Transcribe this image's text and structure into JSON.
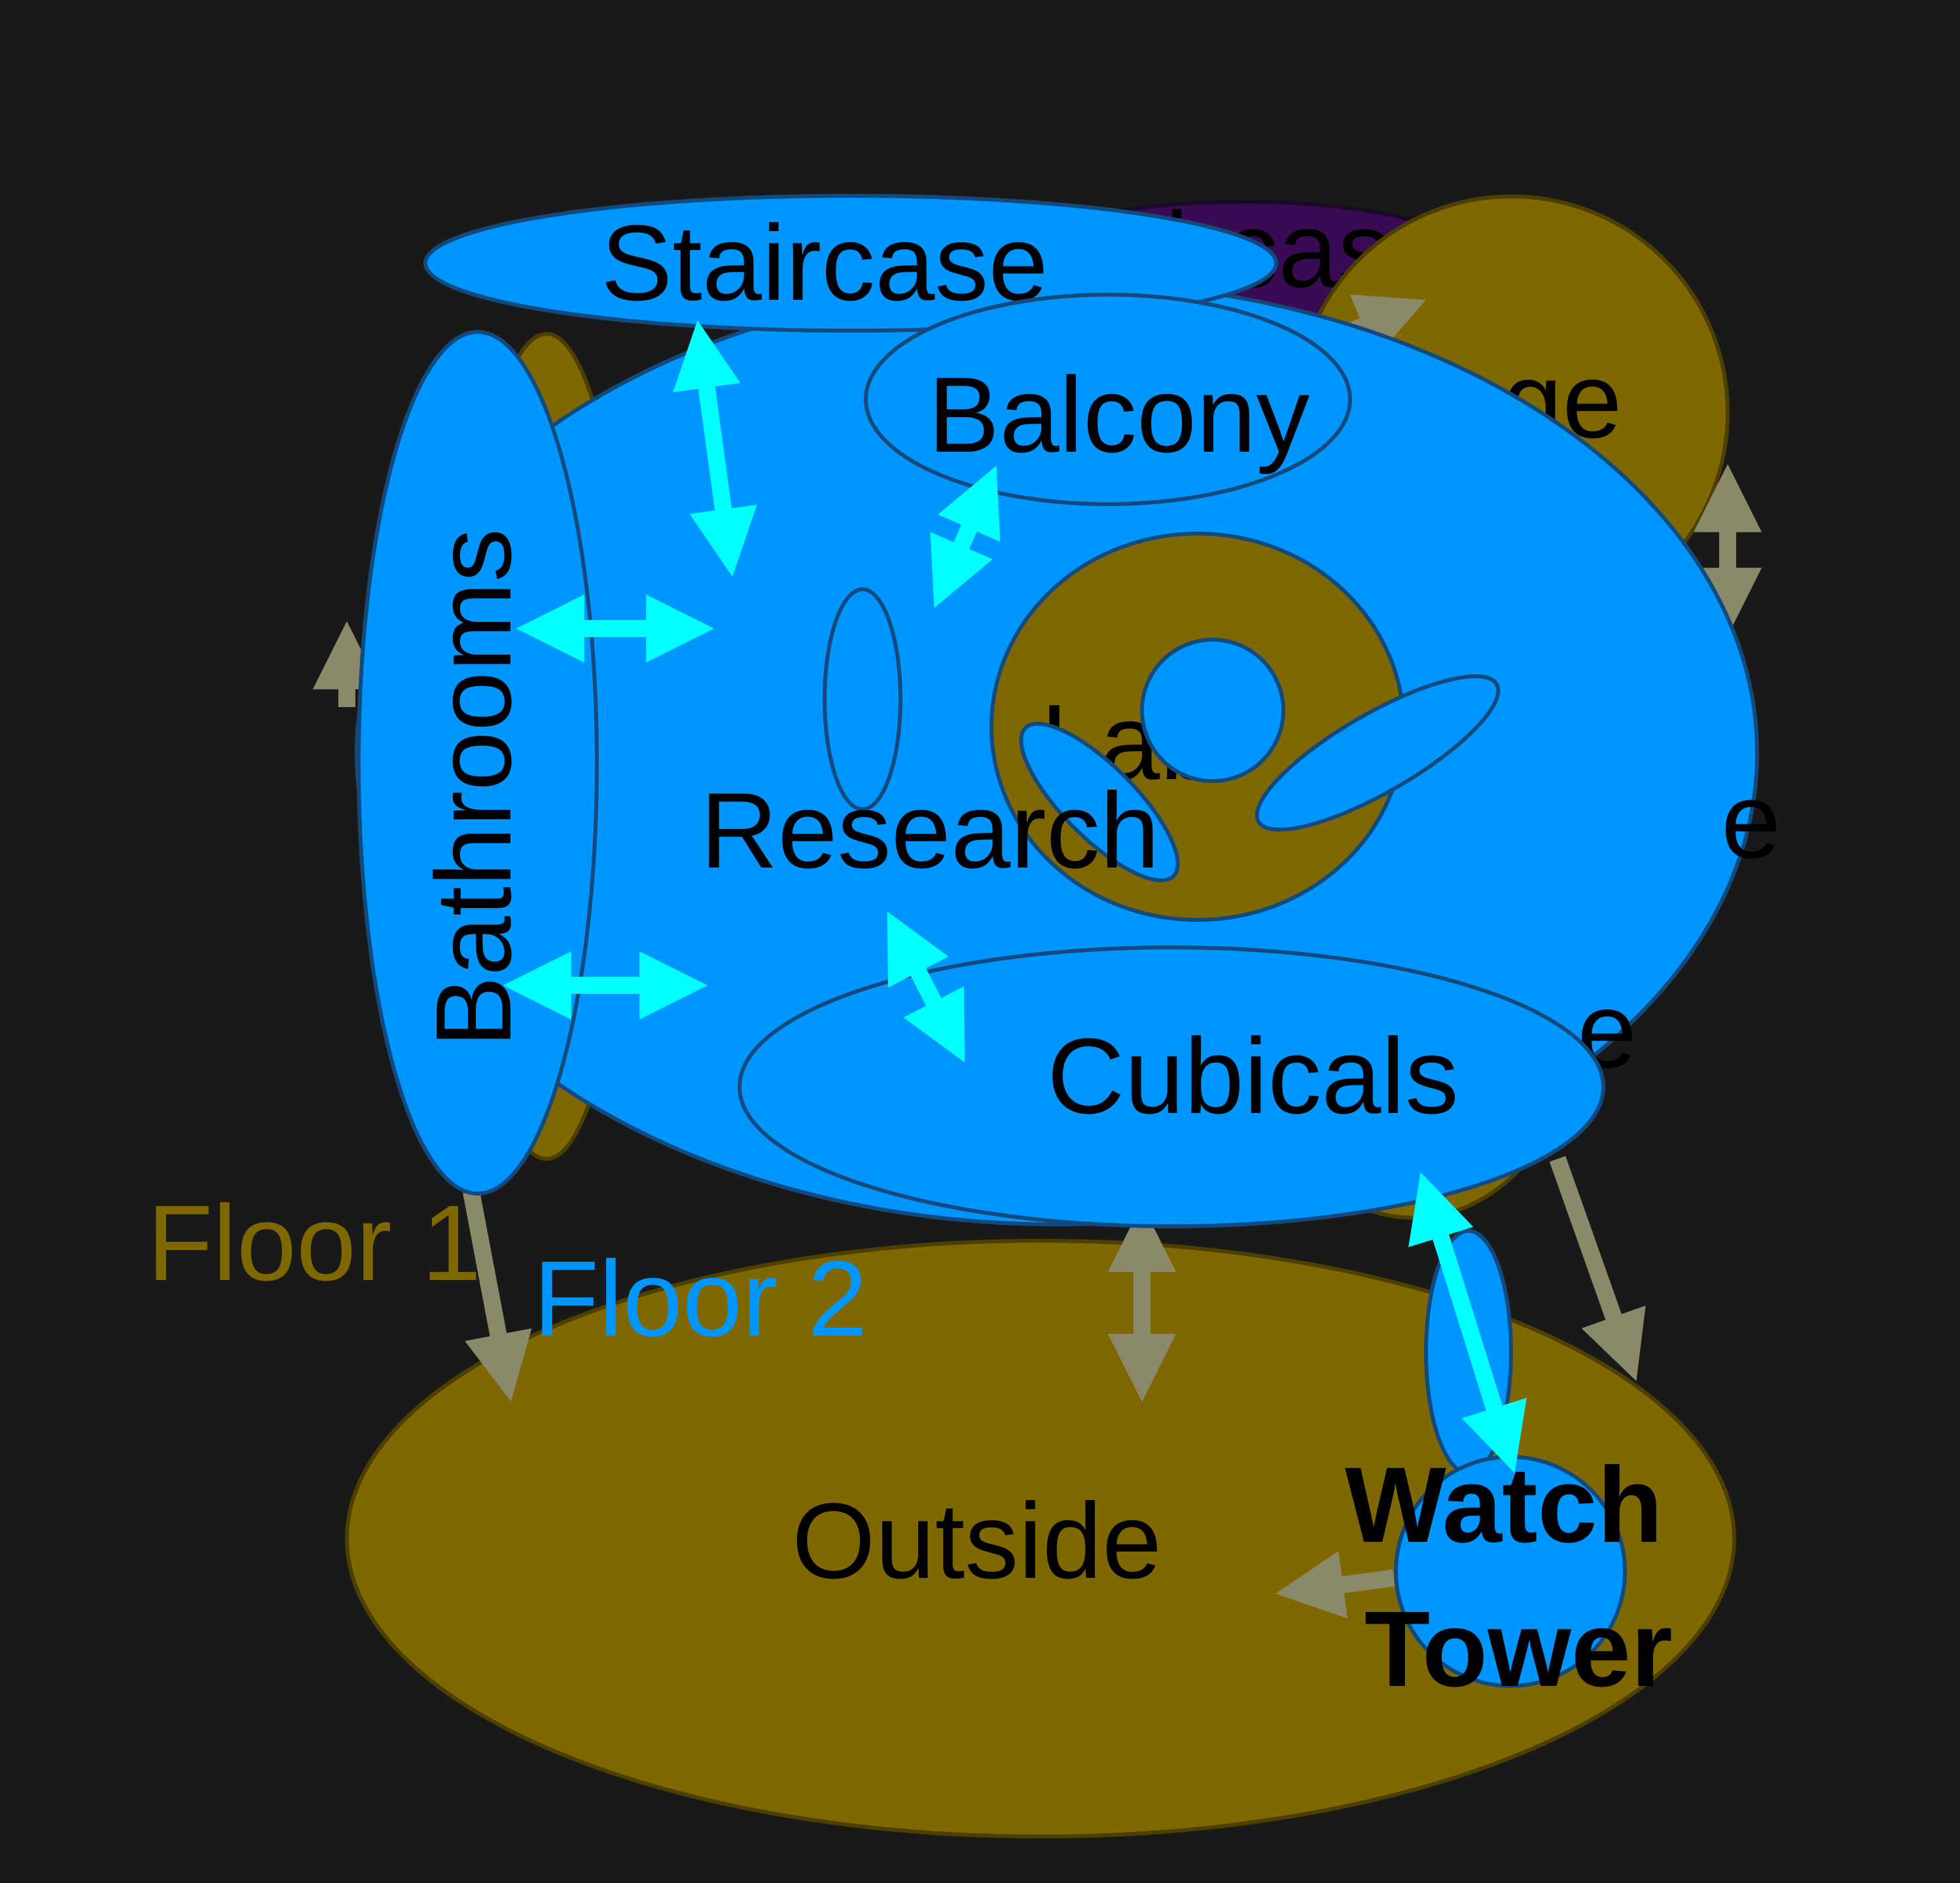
{
  "colors": {
    "background": "#191919",
    "floor1": "#7f6800",
    "floor1_stroke": "#4d3f00",
    "floor2": "#0096ff",
    "floor2_stroke": "#124a7d",
    "staircase_hidden": "#3a0a55",
    "arrow_floor1": "#8a8a6a",
    "arrow_floor2": "#00ffff",
    "floor1_label": "#7f6800",
    "floor2_label": "#0096ff"
  },
  "floors": {
    "floor1_label": "Floor 1",
    "floor2_label": "Floor 2"
  },
  "rooms": {
    "staircase": "Staircase",
    "balcony": "Balcony",
    "bathrooms": "Bathrooms",
    "research": "Research",
    "cubicals": "Cubicals",
    "outside": "Outside",
    "watch_tower_line1": "Watch",
    "watch_tower_line2": "Tower",
    "stage_partial": "Stage",
    "lab_partial": "Lab",
    "staircase_hidden_partial": "ircas",
    "hidden_e1": "e",
    "hidden_e2": "e"
  }
}
